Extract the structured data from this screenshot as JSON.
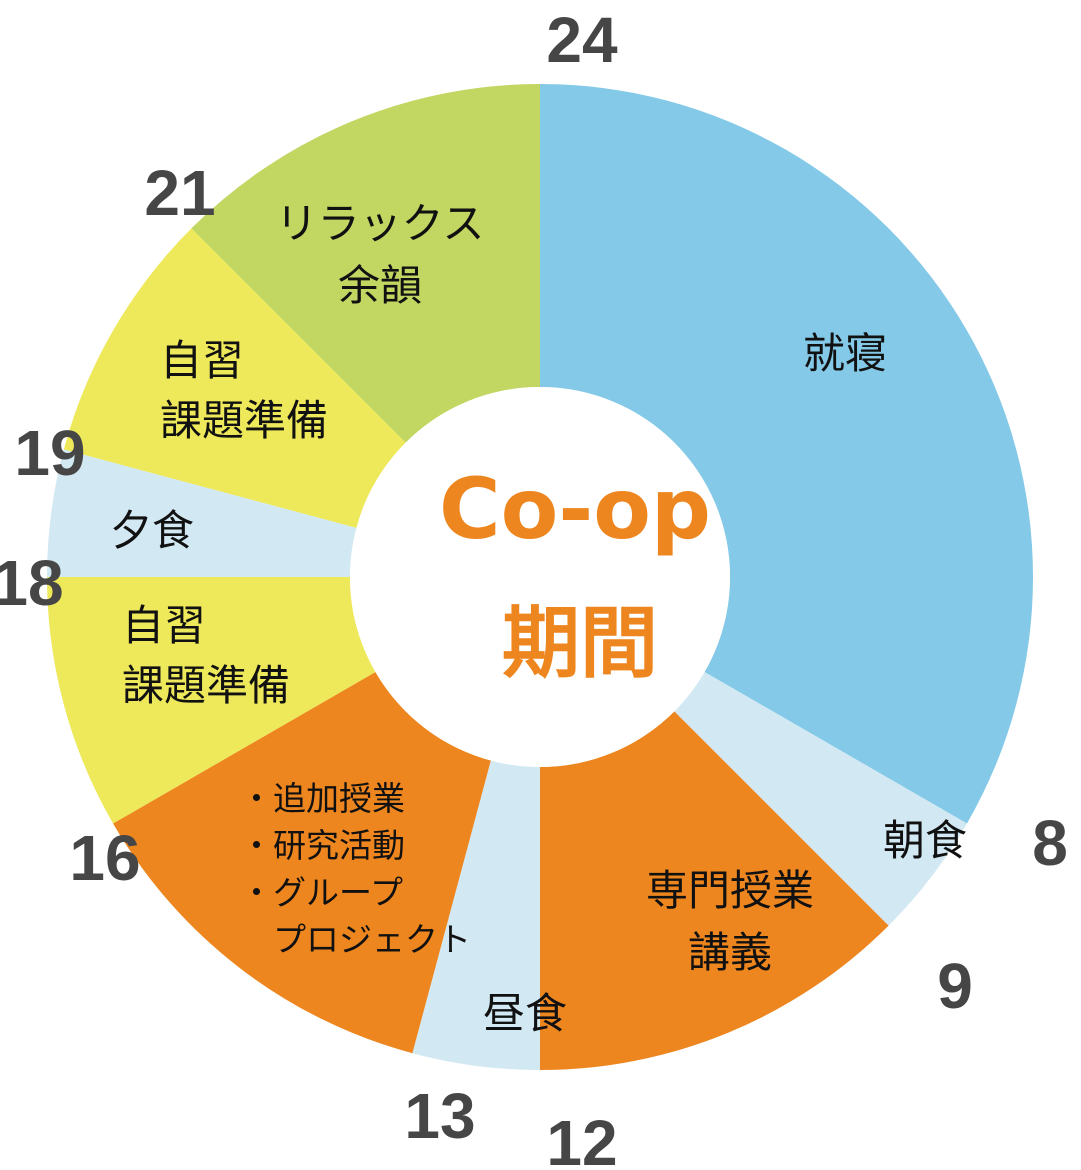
{
  "chart_data": {
    "type": "donut",
    "unit": "hour",
    "center_label": [
      "Co-op",
      "期間"
    ],
    "segments": [
      {
        "label": [
          "就寝"
        ],
        "start": 24,
        "end": 8,
        "color": "#84C9E8"
      },
      {
        "label": [
          "朝食"
        ],
        "start": 8,
        "end": 9,
        "color": "#D2E9F4"
      },
      {
        "label": [
          "専門授業",
          "講義"
        ],
        "start": 9,
        "end": 12,
        "color": "#EE861F"
      },
      {
        "label": [
          "昼食"
        ],
        "start": 12,
        "end": 13,
        "color": "#D2E9F4"
      },
      {
        "label": [
          "・追加授業",
          "・研究活動",
          "・グループ",
          "　プロジェクト"
        ],
        "start": 13,
        "end": 16,
        "color": "#EE861F"
      },
      {
        "label": [
          "自習",
          "課題準備"
        ],
        "start": 16,
        "end": 18,
        "color": "#EEE85B"
      },
      {
        "label": [
          "夕食"
        ],
        "start": 18,
        "end": 19,
        "color": "#D2E9F4"
      },
      {
        "label": [
          "自習",
          "課題準備"
        ],
        "start": 19,
        "end": 21,
        "color": "#EEE85B"
      },
      {
        "label": [
          "リラックス",
          "余韻"
        ],
        "start": 21,
        "end": 24,
        "color": "#C2D662"
      }
    ],
    "hour_labels": [
      "24",
      "21",
      "19",
      "18",
      "16",
      "13",
      "12",
      "9",
      "8"
    ]
  }
}
